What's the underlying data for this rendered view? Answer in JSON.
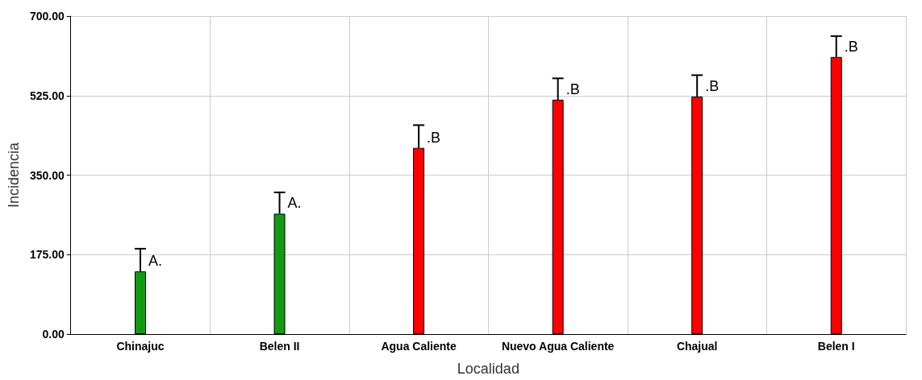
{
  "chart_data": {
    "type": "bar",
    "xlabel": "Localidad",
    "ylabel": "Incidencia",
    "categories": [
      "Chinajuc",
      "Belen II",
      "Agua Caliente",
      "Nuevo Agua Caliente",
      "Chajual",
      "Belen I"
    ],
    "values": [
      138,
      265,
      410,
      516,
      523,
      610
    ],
    "colors": [
      "#139a13",
      "#139a13",
      "#ff0000",
      "#ff0000",
      "#ff0000",
      "#ff0000"
    ],
    "errors": [
      [
        138,
        188
      ],
      [
        265,
        312
      ],
      [
        410,
        460
      ],
      [
        516,
        563
      ],
      [
        523,
        570
      ],
      [
        610,
        656
      ]
    ],
    "ylim": [
      0,
      700
    ],
    "yticks": [
      {
        "value": 0,
        "label": "0.00"
      },
      {
        "value": 175,
        "label": "175.00"
      },
      {
        "value": 350,
        "label": "350.00"
      },
      {
        "value": 525,
        "label": "525.00"
      },
      {
        "value": 700,
        "label": "700.00"
      }
    ],
    "grid": true,
    "annotations": [
      {
        "text": "A.",
        "x": "Chinajuc",
        "y": 138
      },
      {
        "text": "A.",
        "x": "Belen II",
        "y": 265
      },
      {
        "text": ".B",
        "x": "Agua Caliente",
        "y": 410
      },
      {
        "text": ".B",
        "x": "Nuevo Agua Caliente",
        "y": 516
      },
      {
        "text": ".B",
        "x": "Chajual",
        "y": 523
      },
      {
        "text": ".B",
        "x": "Belen I",
        "y": 610
      }
    ]
  }
}
